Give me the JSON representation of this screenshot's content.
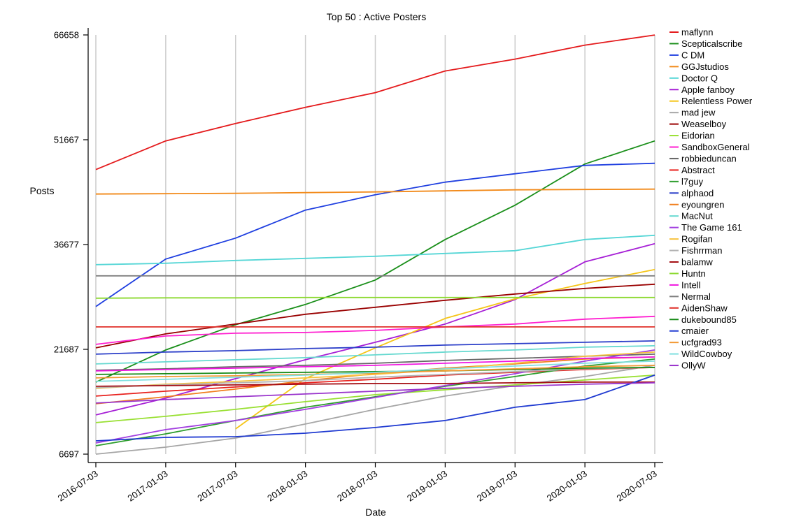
{
  "chart_data": {
    "type": "line",
    "title": "Top 50 : Active Posters",
    "xlabel": "Date",
    "ylabel": "Posts",
    "x": [
      "2016-07-03",
      "2017-01-03",
      "2017-07-03",
      "2018-01-03",
      "2018-07-03",
      "2019-01-03",
      "2019-07-03",
      "2020-01-03",
      "2020-07-03"
    ],
    "xlim": [
      "2016-07-03",
      "2020-07-03"
    ],
    "ylim": [
      6697,
      66658
    ],
    "yticks": [
      6697,
      21687,
      36677,
      51667,
      66658
    ],
    "grid": "vertical",
    "legend_position": "right",
    "series": [
      {
        "name": "maflynn",
        "color": "#e41a1c",
        "values": [
          47400,
          51500,
          54000,
          56300,
          58400,
          61500,
          63200,
          65200,
          66650
        ]
      },
      {
        "name": "Scepticalscribe",
        "color": "#1a8f1a",
        "values": [
          17000,
          21600,
          25200,
          28100,
          31600,
          37400,
          42300,
          48200,
          51500
        ]
      },
      {
        "name": "C DM",
        "color": "#1f3fe0",
        "values": [
          27800,
          34600,
          37600,
          41600,
          43800,
          45600,
          46800,
          48000,
          48300
        ]
      },
      {
        "name": "GGJstudios",
        "color": "#f28a1a",
        "values": [
          43900,
          43950,
          44000,
          44100,
          44200,
          44350,
          44500,
          44550,
          44600
        ]
      },
      {
        "name": "Doctor Q",
        "color": "#55d6d6",
        "values": [
          33800,
          34000,
          34400,
          34700,
          35000,
          35400,
          35800,
          37400,
          38000
        ]
      },
      {
        "name": "Apple fanboy",
        "color": "#a61fd6",
        "values": [
          12300,
          14700,
          17500,
          20200,
          22700,
          25300,
          28800,
          34200,
          36800
        ]
      },
      {
        "name": "Relentless Power",
        "color": "#f5c518",
        "values": null,
        "x": [
          "2017-07-03",
          "2018-01-03",
          "2018-07-03",
          "2019-01-03",
          "2019-07-03",
          "2020-01-03",
          "2020-07-03"
        ],
        "points": [
          10300,
          17500,
          21900,
          26100,
          28900,
          31100,
          33100
        ]
      },
      {
        "name": "mad jew",
        "color": "#a6a6a6",
        "values": [
          6700,
          7700,
          9000,
          11000,
          13100,
          15000,
          16500,
          17800,
          19400
        ]
      },
      {
        "name": "Weaselboy",
        "color": "#990000",
        "values": [
          21900,
          23900,
          25300,
          26700,
          27700,
          28700,
          29600,
          30400,
          31000
        ]
      },
      {
        "name": "Eidorian",
        "color": "#99e033",
        "values": [
          11200,
          12100,
          13100,
          14200,
          15200,
          15900,
          16600,
          17300,
          18000
        ]
      },
      {
        "name": "SandboxGeneral",
        "color": "#ff1fd0",
        "values": [
          22400,
          23600,
          24000,
          24100,
          24400,
          24900,
          25300,
          26000,
          26400
        ]
      },
      {
        "name": "robbieduncan",
        "color": "#666666",
        "values": [
          18700,
          18900,
          19200,
          19400,
          19700,
          20100,
          20400,
          20700,
          21000
        ]
      },
      {
        "name": "Abstract",
        "color": "#e8211d",
        "values": [
          15000,
          15700,
          16300,
          16900,
          17400,
          18000,
          18400,
          18800,
          19100
        ]
      },
      {
        "name": "l7guy",
        "color": "#2e9e2e",
        "values": [
          7900,
          9600,
          11500,
          13400,
          14900,
          16400,
          17800,
          19300,
          20300
        ]
      },
      {
        "name": "alphaod",
        "color": "#2c3fc9",
        "values": [
          21000,
          21300,
          21500,
          21800,
          22000,
          22300,
          22500,
          22700,
          22900
        ]
      },
      {
        "name": "eyoungren",
        "color": "#f07f1e",
        "values": [
          13900,
          14900,
          16000,
          17200,
          18200,
          19000,
          19600,
          20300,
          20600
        ]
      },
      {
        "name": "MacNut",
        "color": "#66d9d0",
        "values": [
          19600,
          19900,
          20200,
          20500,
          20900,
          21300,
          21600,
          22000,
          22200
        ]
      },
      {
        "name": "The Game 161",
        "color": "#a23fe0",
        "values": [
          8300,
          10200,
          11500,
          13100,
          14800,
          16500,
          18200,
          20000,
          21600
        ]
      },
      {
        "name": "Rogifan",
        "color": "#f7c340",
        "values": [
          16100,
          16700,
          17100,
          17600,
          18100,
          18800,
          19700,
          20700,
          21300
        ]
      },
      {
        "name": "Fishrrman",
        "color": "#b3b3b3",
        "values": [
          16200,
          16600,
          16900,
          17200,
          17700,
          18100,
          18500,
          18900,
          19100
        ]
      },
      {
        "name": "balamw",
        "color": "#a50f15",
        "values": [
          16400,
          16500,
          16600,
          16700,
          16800,
          16800,
          16900,
          17000,
          17000
        ]
      },
      {
        "name": "Huntn",
        "color": "#8cd930",
        "values": [
          29000,
          29050,
          29050,
          29100,
          29100,
          29100,
          29100,
          29100,
          29100
        ]
      },
      {
        "name": "Intell",
        "color": "#f016e0",
        "values": [
          18600,
          18800,
          19000,
          19200,
          19400,
          19700,
          20000,
          20400,
          20600
        ]
      },
      {
        "name": "Nermal",
        "color": "#808080",
        "values": [
          32200,
          32200,
          32200,
          32200,
          32200,
          32200,
          32200,
          32200,
          32200
        ]
      },
      {
        "name": "AidenShaw",
        "color": "#e0302a",
        "values": [
          24900,
          24900,
          24900,
          24900,
          24900,
          24900,
          24900,
          24900,
          24900
        ]
      },
      {
        "name": "dukebound85",
        "color": "#168a16",
        "values": [
          18100,
          18200,
          18300,
          18400,
          18500,
          18600,
          18800,
          19000,
          19100
        ]
      },
      {
        "name": "cmaier",
        "color": "#1f3ad1",
        "values": [
          8600,
          9100,
          9200,
          9700,
          10500,
          11500,
          13400,
          14500,
          18000
        ]
      },
      {
        "name": "ucfgrad93",
        "color": "#f29933",
        "values": [
          17600,
          17800,
          17900,
          18100,
          18300,
          18600,
          18900,
          19200,
          19400
        ]
      },
      {
        "name": "WildCowboy",
        "color": "#80e0e0",
        "values": [
          17100,
          17400,
          17700,
          18000,
          18400,
          18900,
          19300,
          19700,
          20000
        ]
      },
      {
        "name": "OllyW",
        "color": "#9933cc",
        "values": [
          14000,
          14500,
          14900,
          15300,
          15700,
          16100,
          16400,
          16700,
          16900
        ]
      }
    ]
  }
}
